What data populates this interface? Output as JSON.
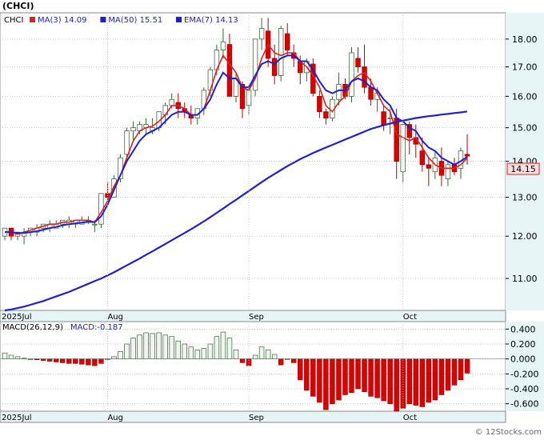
{
  "header": {
    "ticker": "(CHCI)",
    "legend": [
      {
        "label": "CHCI",
        "value": "",
        "color": "#000000"
      },
      {
        "label": "MA(3)",
        "value": "14.09",
        "color": "#e02020"
      },
      {
        "label": "MA(50)",
        "value": "15.51",
        "color": "#2020d0"
      },
      {
        "label": "EMA(7)",
        "value": "14.13",
        "color": "#2020d0"
      }
    ]
  },
  "price_tag": "14.15",
  "macd_legend": {
    "label": "MACD(26,12,9)",
    "value_label": "MACD:-0.187"
  },
  "watermark": "© 12Stocks.com",
  "colors": {
    "up_fill": "#ffffff",
    "down_fill": "#dd0000",
    "macd_pos": "#eef7ee",
    "macd_pos_stroke": "#336633",
    "macd_neg": "#dd0000",
    "axis_bg": "#e6f4f6"
  },
  "chart_data": [
    {
      "type": "candlestick",
      "title": "",
      "x_labels": [
        "2025Jul",
        "Aug",
        "Sep",
        "Oct"
      ],
      "y_ticks": [
        11.0,
        12.0,
        13.0,
        14.0,
        15.0,
        16.0,
        17.0,
        18.0
      ],
      "ylim": [
        10.3,
        19.0
      ],
      "scale": "log",
      "grid": true,
      "series": [
        {
          "name": "CHCI",
          "kind": "ohlc",
          "values": [
            [
              12.0,
              12.2,
              11.9,
              12.2
            ],
            [
              12.2,
              12.2,
              11.9,
              12.0
            ],
            [
              12.0,
              12.1,
              11.9,
              12.1
            ],
            [
              12.0,
              12.2,
              11.8,
              12.1
            ],
            [
              12.1,
              12.2,
              12.0,
              12.2
            ],
            [
              12.1,
              12.3,
              12.0,
              12.2
            ],
            [
              12.2,
              12.3,
              12.1,
              12.3
            ],
            [
              12.2,
              12.4,
              12.1,
              12.3
            ],
            [
              12.2,
              12.4,
              12.2,
              12.3
            ],
            [
              12.3,
              12.4,
              12.2,
              12.4
            ],
            [
              12.3,
              12.5,
              12.2,
              12.4
            ],
            [
              12.3,
              12.4,
              12.2,
              12.4
            ],
            [
              12.3,
              12.5,
              12.3,
              12.4
            ],
            [
              12.4,
              12.5,
              12.3,
              12.4
            ],
            [
              12.3,
              12.4,
              12.1,
              12.3
            ],
            [
              12.3,
              13.1,
              12.2,
              13.1
            ],
            [
              13.1,
              13.4,
              12.9,
              13.0
            ],
            [
              13.0,
              13.6,
              13.0,
              13.5
            ],
            [
              13.5,
              14.2,
              13.4,
              14.1
            ],
            [
              14.2,
              15.0,
              14.0,
              14.9
            ],
            [
              14.9,
              15.2,
              14.6,
              15.0
            ],
            [
              14.9,
              15.2,
              14.8,
              15.1
            ],
            [
              15.0,
              15.3,
              14.8,
              15.1
            ],
            [
              14.9,
              15.3,
              14.8,
              15.0
            ],
            [
              15.0,
              15.5,
              14.9,
              15.5
            ],
            [
              15.4,
              15.8,
              15.1,
              15.7
            ],
            [
              15.7,
              16.1,
              15.6,
              15.9
            ],
            [
              15.8,
              16.1,
              15.3,
              15.6
            ],
            [
              15.6,
              15.8,
              15.3,
              15.5
            ],
            [
              15.4,
              15.7,
              15.1,
              15.3
            ],
            [
              15.3,
              15.6,
              15.1,
              15.6
            ],
            [
              15.6,
              16.3,
              15.4,
              16.2
            ],
            [
              16.2,
              17.0,
              16.0,
              16.9
            ],
            [
              16.9,
              17.8,
              16.7,
              17.6
            ],
            [
              17.6,
              18.4,
              17.3,
              17.9
            ],
            [
              17.8,
              18.2,
              16.0,
              16.0
            ],
            [
              16.0,
              16.8,
              15.8,
              16.6
            ],
            [
              16.4,
              16.5,
              15.3,
              15.6
            ],
            [
              15.7,
              16.4,
              15.4,
              16.2
            ],
            [
              16.2,
              18.0,
              16.0,
              18.0
            ],
            [
              18.0,
              18.8,
              17.6,
              18.4
            ],
            [
              18.3,
              18.8,
              17.0,
              17.3
            ],
            [
              17.3,
              17.8,
              16.4,
              16.7
            ],
            [
              16.7,
              18.5,
              16.5,
              18.4
            ],
            [
              18.2,
              18.6,
              17.4,
              17.6
            ],
            [
              17.5,
              17.8,
              17.0,
              17.3
            ],
            [
              17.2,
              17.4,
              16.4,
              16.8
            ],
            [
              16.8,
              17.3,
              16.5,
              17.2
            ],
            [
              17.1,
              17.3,
              16.0,
              16.1
            ],
            [
              16.0,
              16.2,
              15.3,
              15.5
            ],
            [
              15.5,
              15.6,
              15.1,
              15.3
            ],
            [
              15.3,
              16.0,
              15.2,
              15.9
            ],
            [
              15.9,
              16.8,
              15.7,
              16.4
            ],
            [
              16.4,
              16.6,
              15.9,
              16.0
            ],
            [
              16.0,
              17.7,
              15.8,
              17.5
            ],
            [
              17.3,
              17.7,
              16.8,
              17.0
            ],
            [
              17.0,
              17.8,
              16.1,
              16.3
            ],
            [
              16.3,
              16.6,
              15.7,
              15.9
            ],
            [
              15.9,
              16.3,
              15.5,
              16.1
            ],
            [
              15.5,
              15.7,
              14.9,
              15.1
            ],
            [
              15.3,
              15.6,
              14.8,
              15.3
            ],
            [
              15.3,
              15.6,
              13.5,
              14.0
            ],
            [
              13.7,
              15.1,
              13.4,
              15.1
            ],
            [
              15.1,
              15.2,
              14.2,
              14.7
            ],
            [
              14.7,
              15.1,
              14.1,
              14.5
            ],
            [
              14.3,
              14.7,
              13.7,
              13.9
            ],
            [
              13.9,
              14.1,
              13.3,
              13.8
            ],
            [
              13.7,
              14.3,
              13.5,
              14.1
            ],
            [
              14.0,
              14.4,
              13.3,
              13.6
            ],
            [
              13.5,
              14.0,
              13.3,
              13.9
            ],
            [
              13.9,
              14.1,
              13.6,
              13.7
            ],
            [
              13.8,
              14.4,
              13.5,
              14.3
            ],
            [
              14.2,
              14.8,
              13.9,
              14.15
            ]
          ]
        },
        {
          "name": "MA(3)",
          "kind": "line",
          "values": [
            12.1,
            12.1,
            12.05,
            12.1,
            12.15,
            12.2,
            12.25,
            12.3,
            12.3,
            12.35,
            12.35,
            12.4,
            12.4,
            12.4,
            12.35,
            12.6,
            12.9,
            13.3,
            13.6,
            14.1,
            14.6,
            14.9,
            15.0,
            15.05,
            15.2,
            15.4,
            15.7,
            15.7,
            15.6,
            15.4,
            15.4,
            15.6,
            16.2,
            16.9,
            17.4,
            17.1,
            16.8,
            16.3,
            16.2,
            16.6,
            17.3,
            17.8,
            17.5,
            17.4,
            17.5,
            17.5,
            17.2,
            17.0,
            16.7,
            16.3,
            15.7,
            15.5,
            15.8,
            16.0,
            16.5,
            16.7,
            16.8,
            16.5,
            16.1,
            15.7,
            15.5,
            14.8,
            14.7,
            14.6,
            14.7,
            14.4,
            14.1,
            13.9,
            13.8,
            13.8,
            13.8,
            13.9,
            14.09
          ]
        },
        {
          "name": "EMA(7)",
          "kind": "line",
          "values": [
            12.1,
            12.1,
            12.08,
            12.08,
            12.1,
            12.12,
            12.16,
            12.2,
            12.23,
            12.27,
            12.3,
            12.32,
            12.34,
            12.36,
            12.35,
            12.5,
            12.8,
            13.2,
            13.6,
            14.0,
            14.3,
            14.6,
            14.8,
            14.9,
            15.0,
            15.2,
            15.4,
            15.5,
            15.5,
            15.4,
            15.4,
            15.6,
            15.9,
            16.4,
            16.8,
            16.6,
            16.6,
            16.3,
            16.3,
            16.7,
            17.1,
            17.2,
            17.1,
            17.3,
            17.4,
            17.4,
            17.2,
            17.2,
            16.9,
            16.5,
            16.2,
            16.1,
            16.2,
            16.2,
            16.5,
            16.6,
            16.5,
            16.3,
            16.2,
            15.9,
            15.7,
            15.3,
            15.2,
            15.0,
            14.9,
            14.6,
            14.4,
            14.3,
            14.1,
            14.0,
            13.9,
            14.0,
            14.13
          ]
        },
        {
          "name": "MA(50)",
          "kind": "line",
          "values": [
            10.3,
            10.32,
            10.35,
            10.38,
            10.42,
            10.46,
            10.5,
            10.55,
            10.6,
            10.65,
            10.7,
            10.76,
            10.82,
            10.88,
            10.94,
            11.0,
            11.07,
            11.14,
            11.22,
            11.3,
            11.38,
            11.46,
            11.55,
            11.63,
            11.72,
            11.81,
            11.9,
            11.99,
            12.08,
            12.17,
            12.27,
            12.37,
            12.48,
            12.59,
            12.7,
            12.82,
            12.93,
            13.05,
            13.17,
            13.29,
            13.41,
            13.53,
            13.64,
            13.75,
            13.86,
            13.96,
            14.06,
            14.15,
            14.24,
            14.32,
            14.4,
            14.48,
            14.56,
            14.64,
            14.72,
            14.8,
            14.88,
            14.96,
            15.02,
            15.08,
            15.13,
            15.18,
            15.22,
            15.26,
            15.3,
            15.33,
            15.36,
            15.38,
            15.41,
            15.43,
            15.46,
            15.48,
            15.51
          ]
        }
      ]
    },
    {
      "type": "bar",
      "title": "",
      "series_name": "MACD(26,12,9)",
      "y_ticks": [
        0.4,
        0.2,
        0.0,
        -0.2,
        -0.4,
        -0.6
      ],
      "y_tick_labels": [
        "0.400",
        "0.200",
        "0.000",
        "-0.200",
        "-0.400",
        "-0.600"
      ],
      "ylim": [
        -0.7,
        0.5
      ],
      "x_labels": [
        "2025Jul",
        "Aug",
        "Sep",
        "Oct"
      ],
      "values": [
        0.08,
        0.05,
        0.03,
        0.01,
        0.0,
        -0.01,
        -0.02,
        -0.03,
        -0.04,
        -0.05,
        -0.06,
        -0.06,
        -0.07,
        -0.08,
        -0.09,
        -0.06,
        0.0,
        0.03,
        0.1,
        0.2,
        0.28,
        0.32,
        0.35,
        0.34,
        0.35,
        0.32,
        0.3,
        0.24,
        0.2,
        0.16,
        0.12,
        0.14,
        0.2,
        0.3,
        0.36,
        0.28,
        0.12,
        -0.05,
        -0.09,
        0.05,
        0.16,
        0.12,
        0.06,
        -0.08,
        0.0,
        -0.05,
        -0.28,
        -0.42,
        -0.5,
        -0.58,
        -0.68,
        -0.6,
        -0.55,
        -0.48,
        -0.45,
        -0.4,
        -0.44,
        -0.5,
        -0.52,
        -0.56,
        -0.6,
        -0.7,
        -0.66,
        -0.6,
        -0.62,
        -0.64,
        -0.58,
        -0.55,
        -0.48,
        -0.42,
        -0.35,
        -0.28,
        -0.19
      ]
    }
  ]
}
